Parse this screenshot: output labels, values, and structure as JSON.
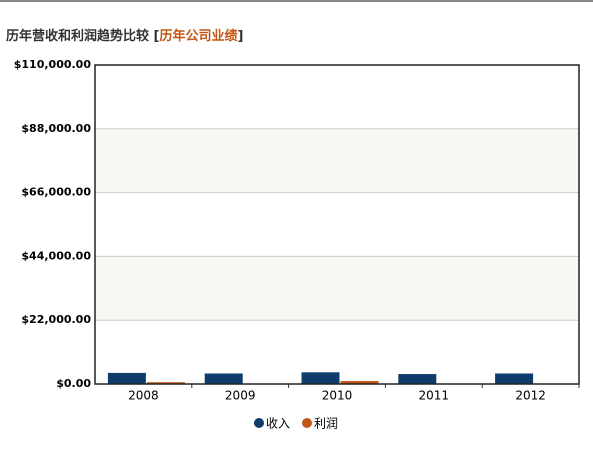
{
  "chart_data": {
    "type": "bar",
    "title_parts": [
      "历年营收和利润趋势比较 [",
      "历年公司业绩",
      "]"
    ],
    "categories": [
      "2008",
      "2009",
      "2010",
      "2011",
      "2012"
    ],
    "series": [
      {
        "name": "收入",
        "color": "#0f3d6b",
        "values": [
          4000,
          3800,
          4200,
          3600,
          3800
        ]
      },
      {
        "name": "利润",
        "color": "#c35617",
        "values": [
          800,
          100,
          1200,
          300,
          300
        ]
      }
    ],
    "ylim": [
      0,
      110000
    ],
    "yticks": [
      {
        "value": 0,
        "label": "$0.00"
      },
      {
        "value": 22000,
        "label": "$22,000.00"
      },
      {
        "value": 44000,
        "label": "$44,000.00"
      },
      {
        "value": 66000,
        "label": "$66,000.00"
      },
      {
        "value": 88000,
        "label": "$88,000.00"
      },
      {
        "value": 110000,
        "label": "$110,000.00"
      }
    ],
    "grid": true,
    "legend": "bottom"
  }
}
